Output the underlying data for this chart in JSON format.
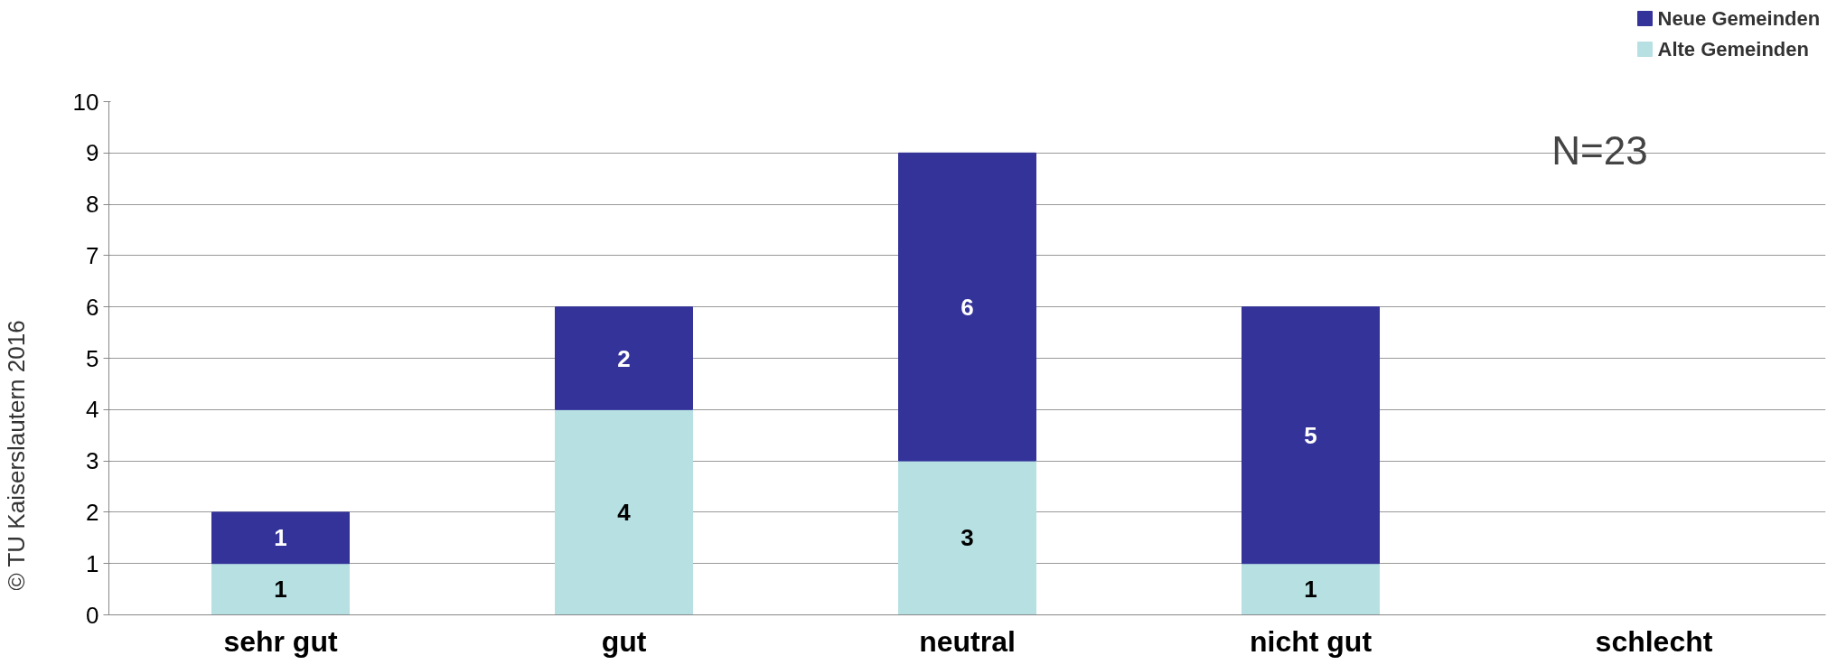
{
  "chart_data": {
    "type": "bar",
    "stacked": true,
    "categories": [
      "sehr gut",
      "gut",
      "neutral",
      "nicht gut",
      "schlecht"
    ],
    "series": [
      {
        "name": "Alte Gemeinden",
        "color": "#b7e0e3",
        "values": [
          1,
          4,
          3,
          1,
          null
        ]
      },
      {
        "name": "Neue Gemeinden",
        "color": "#333399",
        "values": [
          1,
          2,
          6,
          5,
          null
        ]
      }
    ],
    "ylim": [
      0,
      10
    ],
    "yticks": [
      0,
      1,
      2,
      3,
      4,
      5,
      6,
      7,
      8,
      9,
      10
    ],
    "grid": "y",
    "legend": "top right",
    "data_labels": true,
    "annotations": [
      "N=23",
      "© TU Kaiserslautern 2016"
    ]
  }
}
